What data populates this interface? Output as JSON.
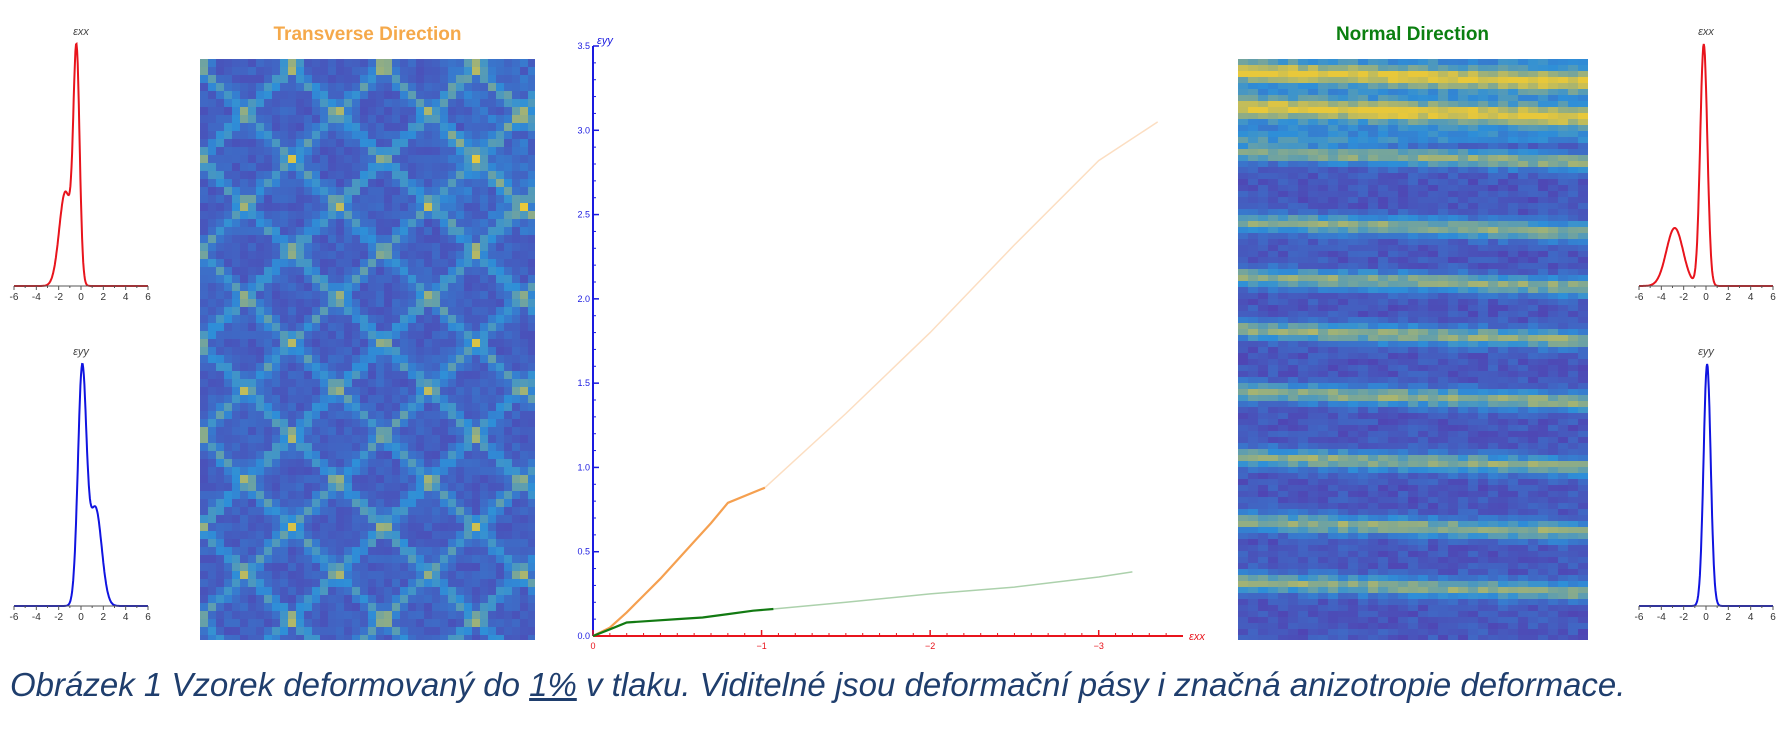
{
  "titles": {
    "transverse": "Transverse Direction",
    "normal": "Normal Direction"
  },
  "caption": {
    "before": "Obrázek 1 Vzorek deformovaný do ",
    "link": "1%",
    "after": " v tlaku. Viditelné jsou deformační pásy i značná anizotropie deformace."
  },
  "colors": {
    "red": "#e8141c",
    "blue": "#1014e0",
    "orange": "#f5a050",
    "green": "#127a12",
    "map_low": "#5a2ea8",
    "map_mid": "#2e8fd8",
    "map_high": "#e8c83a"
  },
  "hist_axis": {
    "ticks": [
      "-6",
      "-4",
      "-2",
      "0",
      "2",
      "4",
      "6"
    ]
  },
  "histograms": [
    {
      "id": "left-exx",
      "label": "εxx",
      "color": "red",
      "components": [
        {
          "mu": -0.4,
          "sigma": 0.28,
          "w": 1.0
        },
        {
          "mu": -1.4,
          "sigma": 0.55,
          "w": 0.42
        }
      ]
    },
    {
      "id": "left-eyy",
      "label": "εyy",
      "color": "blue",
      "components": [
        {
          "mu": 0.1,
          "sigma": 0.38,
          "w": 1.0
        },
        {
          "mu": 1.3,
          "sigma": 0.55,
          "w": 0.42
        }
      ]
    },
    {
      "id": "right-exx",
      "label": "εxx",
      "color": "red",
      "components": [
        {
          "mu": -0.2,
          "sigma": 0.32,
          "w": 1.0
        },
        {
          "mu": -2.8,
          "sigma": 0.75,
          "w": 0.24
        }
      ]
    },
    {
      "id": "right-eyy",
      "label": "εyy",
      "color": "blue",
      "components": [
        {
          "mu": 0.1,
          "sigma": 0.32,
          "w": 1.0
        }
      ]
    }
  ],
  "chart_data": {
    "type": "line",
    "xlabel": "εxx",
    "ylabel": "εyy",
    "xlim": [
      0,
      -3.5
    ],
    "ylim": [
      0,
      3.5
    ],
    "xticks": [
      "0",
      "−1",
      "−2",
      "−3"
    ],
    "xtick_values": [
      0,
      -1,
      -2,
      -3
    ],
    "yticks": [
      "0.0",
      "0.5",
      "1.0",
      "1.5",
      "2.0",
      "2.5",
      "3.0",
      "3.5"
    ],
    "ytick_values": [
      0.0,
      0.5,
      1.0,
      1.5,
      2.0,
      2.5,
      3.0,
      3.5
    ],
    "series": [
      {
        "color": "orange",
        "style": "solid",
        "points": [
          [
            0,
            0
          ],
          [
            -0.1,
            0.05
          ],
          [
            -0.2,
            0.14
          ],
          [
            -0.3,
            0.24
          ],
          [
            -0.4,
            0.34
          ],
          [
            -0.5,
            0.45
          ],
          [
            -0.6,
            0.56
          ],
          [
            -0.7,
            0.67
          ],
          [
            -0.8,
            0.79
          ],
          [
            -1.02,
            0.88
          ]
        ]
      },
      {
        "color": "orange",
        "style": "faded",
        "points": [
          [
            -1.02,
            0.88
          ],
          [
            -1.5,
            1.32
          ],
          [
            -2.0,
            1.8
          ],
          [
            -2.5,
            2.32
          ],
          [
            -3.0,
            2.82
          ],
          [
            -3.35,
            3.05
          ]
        ]
      },
      {
        "color": "green",
        "style": "solid",
        "points": [
          [
            0,
            0
          ],
          [
            -0.1,
            0.04
          ],
          [
            -0.2,
            0.08
          ],
          [
            -0.35,
            0.09
          ],
          [
            -0.5,
            0.1
          ],
          [
            -0.65,
            0.11
          ],
          [
            -0.8,
            0.13
          ],
          [
            -0.95,
            0.15
          ],
          [
            -1.07,
            0.16
          ]
        ]
      },
      {
        "color": "green",
        "style": "faded",
        "points": [
          [
            -1.07,
            0.16
          ],
          [
            -1.5,
            0.2
          ],
          [
            -2.0,
            0.25
          ],
          [
            -2.5,
            0.29
          ],
          [
            -3.0,
            0.35
          ],
          [
            -3.2,
            0.38
          ]
        ]
      }
    ]
  }
}
